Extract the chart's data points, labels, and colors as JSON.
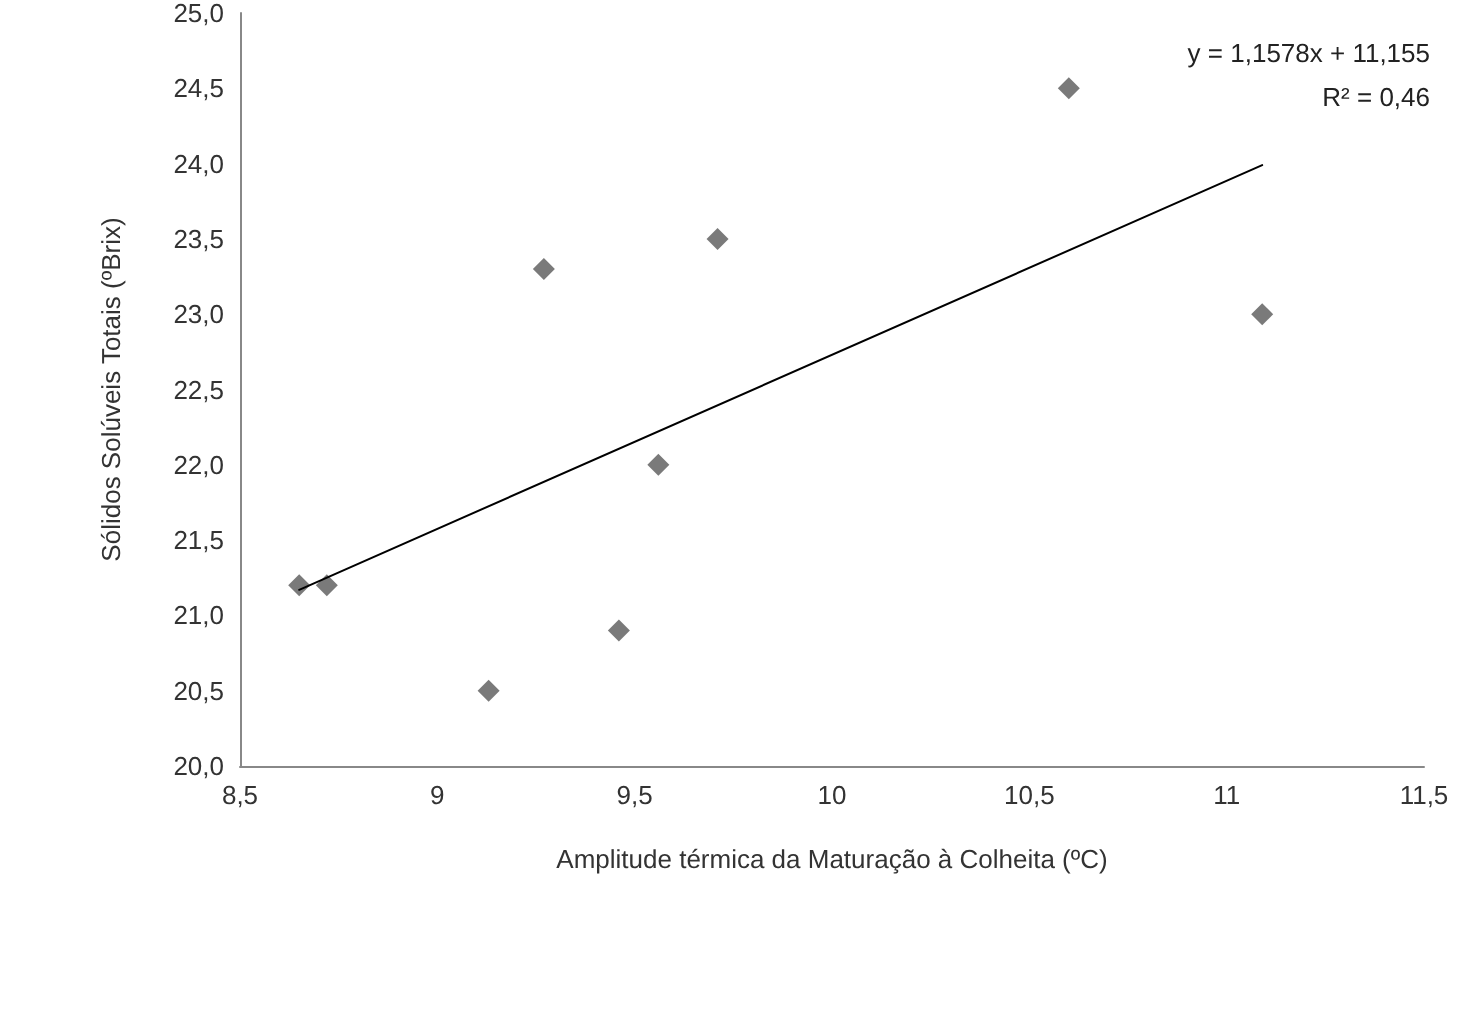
{
  "chart_data": {
    "type": "scatter",
    "xlabel": "Amplitude térmica da Maturação à Colheita (ºC)",
    "ylabel": "Sólidos Solúveis Totais (ºBrix)",
    "annotations": [
      "y = 1,1578x + 11,155",
      "R² = 0,46"
    ],
    "series": [
      {
        "color": "#595959",
        "marker": "diamond",
        "x": [
          8.65,
          8.72,
          9.13,
          9.27,
          9.46,
          9.56,
          9.71,
          10.6,
          11.09
        ],
        "values": [
          21.2,
          21.2,
          20.5,
          23.3,
          20.9,
          22.0,
          23.5,
          24.5,
          23.0
        ]
      },
      {
        "type": "line",
        "color": "#000000",
        "marker": "none",
        "line_style": "solid",
        "x": [
          8.65,
          11.09
        ],
        "values": [
          21.17,
          23.99
        ]
      }
    ],
    "xlim": [
      8.5,
      11.5
    ],
    "xticks": [
      {
        "value": 8.5,
        "label": "8,5"
      },
      9,
      {
        "value": 9.5,
        "label": "9,5"
      },
      10,
      {
        "value": 10.5,
        "label": "10,5"
      },
      11,
      {
        "value": 11.5,
        "label": "11,5"
      }
    ],
    "ylim": [
      20,
      25
    ],
    "yticks": [
      {
        "value": 20,
        "label": "20,0"
      },
      {
        "value": 20.5,
        "label": "20,5"
      },
      {
        "value": 21,
        "label": "21,0"
      },
      {
        "value": 21.5,
        "label": "21,5"
      },
      {
        "value": 22,
        "label": "22,0"
      },
      {
        "value": 22.5,
        "label": "22,5"
      },
      {
        "value": 23,
        "label": "23,0"
      },
      {
        "value": 23.5,
        "label": "23,5"
      },
      {
        "value": 24,
        "label": "24,0"
      },
      {
        "value": 24.5,
        "label": "24,5"
      },
      {
        "value": 25,
        "label": "25,0"
      }
    ],
    "grid": false
  }
}
